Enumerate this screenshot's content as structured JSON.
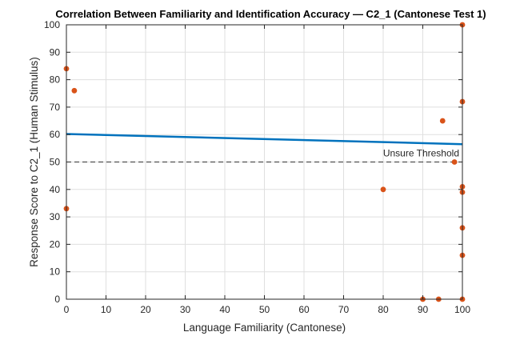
{
  "chart_data": {
    "type": "scatter",
    "title": "Correlation Between Familiarity and Identification Accuracy — C2_1 (Cantonese Test 1)",
    "xlabel": "Language Familiarity (Cantonese)",
    "ylabel": "Response Score to C2_1 (Human Stimulus)",
    "xlim": [
      0,
      100
    ],
    "ylim": [
      0,
      100
    ],
    "xticks": [
      0,
      10,
      20,
      30,
      40,
      50,
      60,
      70,
      80,
      90,
      100
    ],
    "yticks": [
      0,
      10,
      20,
      30,
      40,
      50,
      60,
      70,
      80,
      90,
      100
    ],
    "grid": true,
    "points": [
      {
        "x": 0,
        "y": 84
      },
      {
        "x": 2,
        "y": 76
      },
      {
        "x": 0,
        "y": 33
      },
      {
        "x": 80,
        "y": 40
      },
      {
        "x": 90,
        "y": 0
      },
      {
        "x": 94,
        "y": 0
      },
      {
        "x": 95,
        "y": 65
      },
      {
        "x": 98,
        "y": 50
      },
      {
        "x": 100,
        "y": 100
      },
      {
        "x": 100,
        "y": 72
      },
      {
        "x": 100,
        "y": 41
      },
      {
        "x": 100,
        "y": 39
      },
      {
        "x": 100,
        "y": 26
      },
      {
        "x": 100,
        "y": 16
      },
      {
        "x": 100,
        "y": 0
      }
    ],
    "trend_line": {
      "x": [
        0,
        100
      ],
      "y": [
        60.2,
        56.5
      ]
    },
    "threshold": {
      "y": 50,
      "label": "Unsure Threshold"
    },
    "colors": {
      "points": "#d95319",
      "trend_line": "#0072bd",
      "threshold": "#333333",
      "grid": "#dfdfdf",
      "axes": "#262626"
    }
  }
}
